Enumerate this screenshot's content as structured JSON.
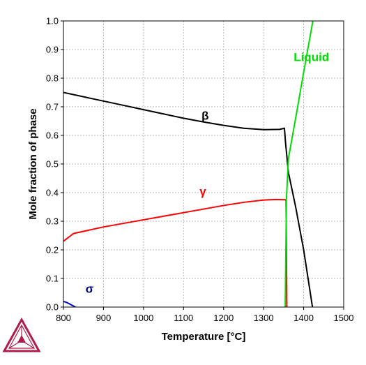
{
  "chart_data": {
    "type": "line",
    "xlabel": "Temperature [°C]",
    "ylabel": "Mole fraction of phase",
    "xlim": [
      800,
      1500
    ],
    "ylim": [
      0,
      1.0
    ],
    "x_ticks": [
      "800",
      "900",
      "1000",
      "1100",
      "1200",
      "1300",
      "1400",
      "1500"
    ],
    "y_ticks": [
      "0.0",
      "0.1",
      "0.2",
      "0.3",
      "0.4",
      "0.5",
      "0.6",
      "0.7",
      "0.8",
      "0.9",
      "1.0"
    ],
    "grid": true,
    "series": [
      {
        "name": "β",
        "color": "#000000",
        "points": [
          [
            800,
            0.75
          ],
          [
            850,
            0.735
          ],
          [
            900,
            0.72
          ],
          [
            950,
            0.705
          ],
          [
            1000,
            0.69
          ],
          [
            1050,
            0.675
          ],
          [
            1100,
            0.66
          ],
          [
            1150,
            0.647
          ],
          [
            1200,
            0.635
          ],
          [
            1250,
            0.625
          ],
          [
            1300,
            0.62
          ],
          [
            1340,
            0.621
          ],
          [
            1352,
            0.625
          ],
          [
            1355,
            0.57
          ],
          [
            1362,
            0.47
          ],
          [
            1380,
            0.35
          ],
          [
            1400,
            0.2
          ],
          [
            1422,
            0.0
          ]
        ]
      },
      {
        "name": "γ",
        "color": "#ff0000",
        "points": [
          [
            800,
            0.23
          ],
          [
            825,
            0.257
          ],
          [
            900,
            0.28
          ],
          [
            1000,
            0.305
          ],
          [
            1100,
            0.33
          ],
          [
            1200,
            0.355
          ],
          [
            1250,
            0.366
          ],
          [
            1300,
            0.374
          ],
          [
            1330,
            0.376
          ],
          [
            1356,
            0.375
          ],
          [
            1358,
            0.0
          ]
        ]
      },
      {
        "name": "Liquid",
        "color": "#00dd00",
        "points": [
          [
            1354,
            0.0
          ],
          [
            1357,
            0.38
          ],
          [
            1362,
            0.52
          ],
          [
            1380,
            0.66
          ],
          [
            1400,
            0.82
          ],
          [
            1423,
            1.0
          ]
        ]
      },
      {
        "name": "σ",
        "color": "#0000cc",
        "points": [
          [
            800,
            0.02
          ],
          [
            810,
            0.015
          ],
          [
            830,
            0.0
          ]
        ]
      }
    ],
    "annotations": [
      {
        "text": "β",
        "x": 1145,
        "y": 0.655,
        "color": "#000000"
      },
      {
        "text": "γ",
        "x": 1140,
        "y": 0.39,
        "color": "#ff0000"
      },
      {
        "text": "Liquid",
        "x": 1375,
        "y": 0.86,
        "color": "#00dd00"
      },
      {
        "text": "σ",
        "x": 855,
        "y": 0.05,
        "color": "#000080"
      }
    ]
  },
  "logo": {
    "name": "thermo-calc-logo-icon",
    "color": "#b01c4a"
  }
}
